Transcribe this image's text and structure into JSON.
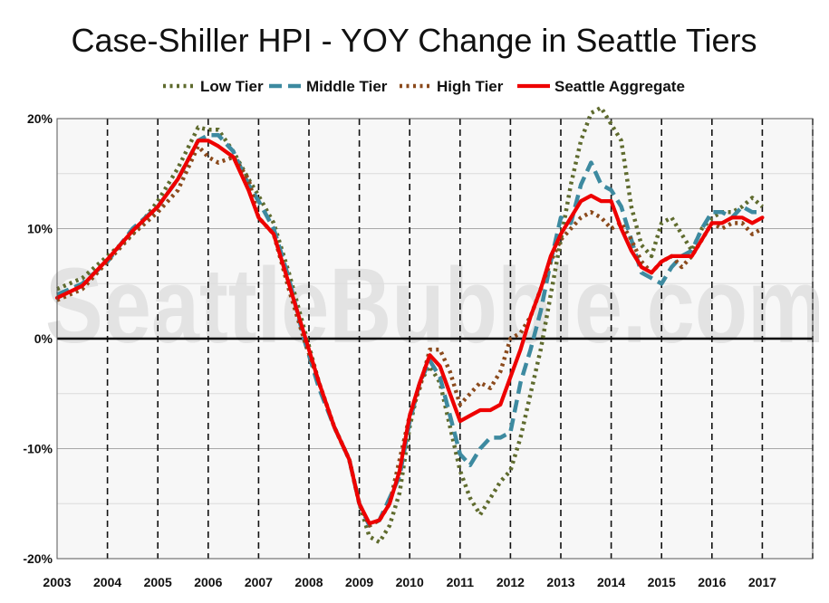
{
  "chart_data": {
    "type": "line",
    "title": "Case-Shiller HPI - YOY Change in Seattle Tiers",
    "watermark": "SeattleBubble.com",
    "xlim": [
      2003,
      2018
    ],
    "ylim": [
      -20,
      20
    ],
    "x_ticks": [
      "2003",
      "2004",
      "2005",
      "2006",
      "2007",
      "2008",
      "2009",
      "2010",
      "2011",
      "2012",
      "2013",
      "2014",
      "2015",
      "2016",
      "2017"
    ],
    "y_ticks": [
      {
        "value": 20,
        "label": "20%"
      },
      {
        "value": 10,
        "label": "10%"
      },
      {
        "value": 0,
        "label": "0%"
      },
      {
        "value": -10,
        "label": "-10%"
      },
      {
        "value": -20,
        "label": "-20%"
      }
    ],
    "legend_position": "top-center",
    "grid": true,
    "series": [
      {
        "name": "Low Tier",
        "color": "#5f6b2e",
        "dash": "dotted",
        "points": [
          [
            2003.0,
            4.5
          ],
          [
            2003.5,
            5.5
          ],
          [
            2004.0,
            7.5
          ],
          [
            2004.5,
            9.5
          ],
          [
            2005.0,
            12.5
          ],
          [
            2005.4,
            15.5
          ],
          [
            2005.8,
            19.2
          ],
          [
            2006.0,
            19.0
          ],
          [
            2006.2,
            19.0
          ],
          [
            2006.5,
            17.0
          ],
          [
            2006.8,
            14.5
          ],
          [
            2007.0,
            13.0
          ],
          [
            2007.3,
            10.5
          ],
          [
            2007.6,
            6.0
          ],
          [
            2007.9,
            1.0
          ],
          [
            2008.2,
            -4.0
          ],
          [
            2008.5,
            -8.0
          ],
          [
            2008.8,
            -11.0
          ],
          [
            2009.0,
            -15.0
          ],
          [
            2009.2,
            -18.0
          ],
          [
            2009.4,
            -18.5
          ],
          [
            2009.6,
            -17.0
          ],
          [
            2009.8,
            -14.0
          ],
          [
            2010.0,
            -8.0
          ],
          [
            2010.2,
            -4.0
          ],
          [
            2010.4,
            -2.5
          ],
          [
            2010.6,
            -4.0
          ],
          [
            2010.8,
            -8.0
          ],
          [
            2011.0,
            -12.0
          ],
          [
            2011.2,
            -14.5
          ],
          [
            2011.4,
            -16.0
          ],
          [
            2011.6,
            -14.5
          ],
          [
            2011.8,
            -13.0
          ],
          [
            2012.0,
            -12.0
          ],
          [
            2012.2,
            -9.0
          ],
          [
            2012.4,
            -5.0
          ],
          [
            2012.6,
            -1.0
          ],
          [
            2012.8,
            4.0
          ],
          [
            2013.0,
            9.0
          ],
          [
            2013.2,
            14.0
          ],
          [
            2013.4,
            18.0
          ],
          [
            2013.6,
            20.5
          ],
          [
            2013.8,
            21.0
          ],
          [
            2014.0,
            19.5
          ],
          [
            2014.2,
            18.0
          ],
          [
            2014.4,
            12.0
          ],
          [
            2014.6,
            8.5
          ],
          [
            2014.8,
            7.5
          ],
          [
            2015.0,
            10.5
          ],
          [
            2015.2,
            11.0
          ],
          [
            2015.4,
            9.5
          ],
          [
            2015.6,
            8.0
          ],
          [
            2015.8,
            10.0
          ],
          [
            2016.0,
            11.0
          ],
          [
            2016.2,
            11.5
          ],
          [
            2016.4,
            11.5
          ],
          [
            2016.6,
            12.0
          ],
          [
            2016.8,
            12.8
          ],
          [
            2017.0,
            12.0
          ]
        ]
      },
      {
        "name": "Middle Tier",
        "color": "#3d8aa0",
        "dash": "dashed",
        "points": [
          [
            2003.0,
            4.0
          ],
          [
            2003.5,
            5.0
          ],
          [
            2004.0,
            7.0
          ],
          [
            2004.5,
            10.0
          ],
          [
            2005.0,
            12.0
          ],
          [
            2005.4,
            14.5
          ],
          [
            2005.8,
            18.0
          ],
          [
            2006.0,
            18.5
          ],
          [
            2006.2,
            18.5
          ],
          [
            2006.5,
            17.0
          ],
          [
            2006.8,
            14.0
          ],
          [
            2007.0,
            12.5
          ],
          [
            2007.3,
            10.0
          ],
          [
            2007.6,
            5.5
          ],
          [
            2007.9,
            0.0
          ],
          [
            2008.2,
            -4.5
          ],
          [
            2008.5,
            -8.0
          ],
          [
            2008.8,
            -11.0
          ],
          [
            2009.0,
            -15.0
          ],
          [
            2009.2,
            -17.0
          ],
          [
            2009.4,
            -16.5
          ],
          [
            2009.6,
            -14.5
          ],
          [
            2009.8,
            -12.5
          ],
          [
            2010.0,
            -7.5
          ],
          [
            2010.2,
            -4.0
          ],
          [
            2010.4,
            -2.0
          ],
          [
            2010.6,
            -3.5
          ],
          [
            2010.8,
            -7.0
          ],
          [
            2011.0,
            -10.5
          ],
          [
            2011.2,
            -11.5
          ],
          [
            2011.4,
            -10.0
          ],
          [
            2011.6,
            -9.0
          ],
          [
            2011.8,
            -9.0
          ],
          [
            2012.0,
            -8.5
          ],
          [
            2012.2,
            -4.0
          ],
          [
            2012.4,
            -1.0
          ],
          [
            2012.6,
            2.5
          ],
          [
            2012.8,
            7.0
          ],
          [
            2013.0,
            11.0
          ],
          [
            2013.2,
            10.5
          ],
          [
            2013.4,
            14.0
          ],
          [
            2013.6,
            16.0
          ],
          [
            2013.8,
            14.0
          ],
          [
            2014.0,
            13.5
          ],
          [
            2014.2,
            12.0
          ],
          [
            2014.4,
            9.0
          ],
          [
            2014.6,
            6.0
          ],
          [
            2014.8,
            5.5
          ],
          [
            2015.0,
            5.0
          ],
          [
            2015.2,
            6.5
          ],
          [
            2015.4,
            7.5
          ],
          [
            2015.6,
            8.0
          ],
          [
            2015.8,
            10.0
          ],
          [
            2016.0,
            11.5
          ],
          [
            2016.2,
            11.5
          ],
          [
            2016.4,
            11.0
          ],
          [
            2016.6,
            12.0
          ],
          [
            2016.8,
            11.5
          ],
          [
            2017.0,
            11.5
          ]
        ]
      },
      {
        "name": "High Tier",
        "color": "#8b4a1c",
        "dash": "dotted",
        "points": [
          [
            2003.0,
            3.5
          ],
          [
            2003.5,
            4.5
          ],
          [
            2004.0,
            7.0
          ],
          [
            2004.5,
            9.5
          ],
          [
            2005.0,
            11.5
          ],
          [
            2005.4,
            13.5
          ],
          [
            2005.8,
            17.5
          ],
          [
            2006.0,
            16.5
          ],
          [
            2006.2,
            16.0
          ],
          [
            2006.5,
            16.5
          ],
          [
            2006.8,
            14.5
          ],
          [
            2007.0,
            11.0
          ],
          [
            2007.3,
            9.5
          ],
          [
            2007.6,
            4.5
          ],
          [
            2007.9,
            0.0
          ],
          [
            2008.2,
            -4.0
          ],
          [
            2008.5,
            -8.0
          ],
          [
            2008.8,
            -11.0
          ],
          [
            2009.0,
            -15.0
          ],
          [
            2009.2,
            -17.0
          ],
          [
            2009.4,
            -16.5
          ],
          [
            2009.6,
            -15.0
          ],
          [
            2009.8,
            -11.0
          ],
          [
            2010.0,
            -7.0
          ],
          [
            2010.2,
            -4.5
          ],
          [
            2010.4,
            -1.0
          ],
          [
            2010.6,
            -1.0
          ],
          [
            2010.8,
            -3.0
          ],
          [
            2011.0,
            -6.0
          ],
          [
            2011.2,
            -5.0
          ],
          [
            2011.4,
            -4.0
          ],
          [
            2011.6,
            -4.5
          ],
          [
            2011.8,
            -3.0
          ],
          [
            2012.0,
            0.0
          ],
          [
            2012.2,
            0.5
          ],
          [
            2012.4,
            2.0
          ],
          [
            2012.6,
            4.5
          ],
          [
            2012.8,
            7.0
          ],
          [
            2013.0,
            9.0
          ],
          [
            2013.2,
            10.0
          ],
          [
            2013.4,
            11.0
          ],
          [
            2013.6,
            11.5
          ],
          [
            2013.8,
            11.0
          ],
          [
            2014.0,
            10.0
          ],
          [
            2014.2,
            10.5
          ],
          [
            2014.4,
            9.0
          ],
          [
            2014.6,
            7.0
          ],
          [
            2014.8,
            6.0
          ],
          [
            2015.0,
            7.0
          ],
          [
            2015.2,
            7.5
          ],
          [
            2015.4,
            6.5
          ],
          [
            2015.6,
            7.5
          ],
          [
            2015.8,
            9.0
          ],
          [
            2016.0,
            10.5
          ],
          [
            2016.2,
            10.0
          ],
          [
            2016.4,
            10.5
          ],
          [
            2016.6,
            10.5
          ],
          [
            2016.8,
            9.5
          ],
          [
            2017.0,
            10.0
          ]
        ]
      },
      {
        "name": "Seattle Aggregate",
        "color": "#ee0000",
        "dash": "solid",
        "points": [
          [
            2003.0,
            3.7
          ],
          [
            2003.5,
            4.8
          ],
          [
            2004.0,
            7.2
          ],
          [
            2004.5,
            9.8
          ],
          [
            2005.0,
            12.0
          ],
          [
            2005.4,
            14.5
          ],
          [
            2005.8,
            18.0
          ],
          [
            2006.0,
            18.0
          ],
          [
            2006.2,
            17.5
          ],
          [
            2006.5,
            16.5
          ],
          [
            2006.8,
            13.5
          ],
          [
            2007.0,
            11.0
          ],
          [
            2007.3,
            9.5
          ],
          [
            2007.6,
            5.0
          ],
          [
            2007.9,
            0.5
          ],
          [
            2008.2,
            -4.0
          ],
          [
            2008.5,
            -8.0
          ],
          [
            2008.8,
            -11.0
          ],
          [
            2009.0,
            -15.0
          ],
          [
            2009.2,
            -16.8
          ],
          [
            2009.4,
            -16.5
          ],
          [
            2009.6,
            -15.0
          ],
          [
            2009.8,
            -12.0
          ],
          [
            2010.0,
            -7.0
          ],
          [
            2010.2,
            -4.0
          ],
          [
            2010.4,
            -1.5
          ],
          [
            2010.6,
            -2.5
          ],
          [
            2010.8,
            -5.0
          ],
          [
            2011.0,
            -7.5
          ],
          [
            2011.2,
            -7.0
          ],
          [
            2011.4,
            -6.5
          ],
          [
            2011.6,
            -6.5
          ],
          [
            2011.8,
            -6.0
          ],
          [
            2012.0,
            -3.5
          ],
          [
            2012.2,
            -1.0
          ],
          [
            2012.4,
            2.0
          ],
          [
            2012.6,
            4.5
          ],
          [
            2012.8,
            7.5
          ],
          [
            2013.0,
            9.5
          ],
          [
            2013.2,
            11.0
          ],
          [
            2013.4,
            12.5
          ],
          [
            2013.6,
            13.0
          ],
          [
            2013.8,
            12.5
          ],
          [
            2014.0,
            12.5
          ],
          [
            2014.2,
            10.0
          ],
          [
            2014.4,
            8.0
          ],
          [
            2014.6,
            6.5
          ],
          [
            2014.8,
            6.0
          ],
          [
            2015.0,
            7.0
          ],
          [
            2015.2,
            7.5
          ],
          [
            2015.4,
            7.5
          ],
          [
            2015.6,
            7.5
          ],
          [
            2015.8,
            9.0
          ],
          [
            2016.0,
            10.5
          ],
          [
            2016.2,
            10.5
          ],
          [
            2016.4,
            11.0
          ],
          [
            2016.6,
            11.0
          ],
          [
            2016.8,
            10.5
          ],
          [
            2017.0,
            11.0
          ]
        ]
      }
    ]
  }
}
